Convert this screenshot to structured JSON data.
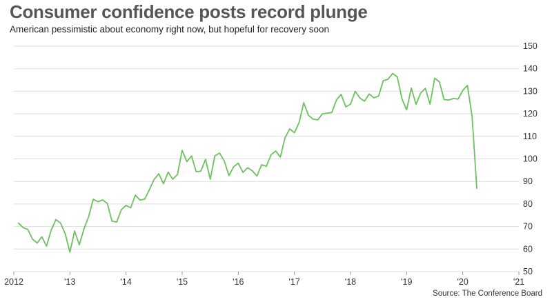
{
  "title": "Consumer confidence posts record plunge",
  "subtitle": "American pessimistic about economy right now, but hopeful for recovery soon",
  "source": "Source: The Conference Board",
  "colors": {
    "line": "#6dbf5f",
    "grid": "#dddddd",
    "axis_text": "#333333"
  },
  "chart_data": {
    "type": "line",
    "title": "Consumer confidence posts record plunge",
    "xlabel": "",
    "ylabel": "",
    "ylim": [
      50,
      150
    ],
    "y_ticks": [
      50,
      60,
      70,
      80,
      90,
      100,
      110,
      120,
      130,
      140,
      150
    ],
    "y_axis_position": "right",
    "xlim": [
      2012,
      2021
    ],
    "x_ticks": [
      2012,
      2013,
      2014,
      2015,
      2016,
      2017,
      2018,
      2019,
      2020,
      2021
    ],
    "x_tick_labels": [
      "2012",
      "'13",
      "'14",
      "'15",
      "'16",
      "'17",
      "'18",
      "'19",
      "'20",
      "'21"
    ],
    "grid": "horizontal",
    "series": [
      {
        "x": [
          2012.083,
          2012.167,
          2012.25,
          2012.333,
          2012.417,
          2012.5,
          2012.583,
          2012.667,
          2012.75,
          2012.833,
          2012.917,
          2013.0,
          2013.083,
          2013.167,
          2013.25,
          2013.333,
          2013.417,
          2013.5,
          2013.583,
          2013.667,
          2013.75,
          2013.833,
          2013.917,
          2014.0,
          2014.083,
          2014.167,
          2014.25,
          2014.333,
          2014.417,
          2014.5,
          2014.583,
          2014.667,
          2014.75,
          2014.833,
          2014.917,
          2015.0,
          2015.083,
          2015.167,
          2015.25,
          2015.333,
          2015.417,
          2015.5,
          2015.583,
          2015.667,
          2015.75,
          2015.833,
          2015.917,
          2016.0,
          2016.083,
          2016.167,
          2016.25,
          2016.333,
          2016.417,
          2016.5,
          2016.583,
          2016.667,
          2016.75,
          2016.833,
          2016.917,
          2017.0,
          2017.083,
          2017.167,
          2017.25,
          2017.333,
          2017.417,
          2017.5,
          2017.583,
          2017.667,
          2017.75,
          2017.833,
          2017.917,
          2018.0,
          2018.083,
          2018.167,
          2018.25,
          2018.333,
          2018.417,
          2018.5,
          2018.583,
          2018.667,
          2018.75,
          2018.833,
          2018.917,
          2019.0,
          2019.083,
          2019.167,
          2019.25,
          2019.333,
          2019.417,
          2019.5,
          2019.583,
          2019.667,
          2019.75,
          2019.833,
          2019.917,
          2020.0,
          2020.083,
          2020.167,
          2020.25
        ],
        "values": [
          71.5,
          69.5,
          68.7,
          64.4,
          62.7,
          65.4,
          61.3,
          68.4,
          73.1,
          71.5,
          66.7,
          58.6,
          68.0,
          61.9,
          69.0,
          74.3,
          82.1,
          81.0,
          81.8,
          80.2,
          72.4,
          72.0,
          77.5,
          79.4,
          78.3,
          83.9,
          81.7,
          82.2,
          86.4,
          90.9,
          93.4,
          89.0,
          94.1,
          91.0,
          93.1,
          103.8,
          98.8,
          101.3,
          94.3,
          94.6,
          99.8,
          91.0,
          101.3,
          102.6,
          99.1,
          92.6,
          96.5,
          98.1,
          94.0,
          96.1,
          94.7,
          92.4,
          97.4,
          96.7,
          101.8,
          103.5,
          100.8,
          109.4,
          113.3,
          111.6,
          116.1,
          124.9,
          119.4,
          117.6,
          117.3,
          120.0,
          120.3,
          120.6,
          126.2,
          128.6,
          123.1,
          124.3,
          130.0,
          127.0,
          125.6,
          128.8,
          127.1,
          127.9,
          134.7,
          135.3,
          137.9,
          136.4,
          126.6,
          121.7,
          131.4,
          124.2,
          129.2,
          131.3,
          124.3,
          135.8,
          134.2,
          126.3,
          126.1,
          126.8,
          126.5,
          130.4,
          132.6,
          118.8,
          86.9
        ]
      }
    ]
  }
}
